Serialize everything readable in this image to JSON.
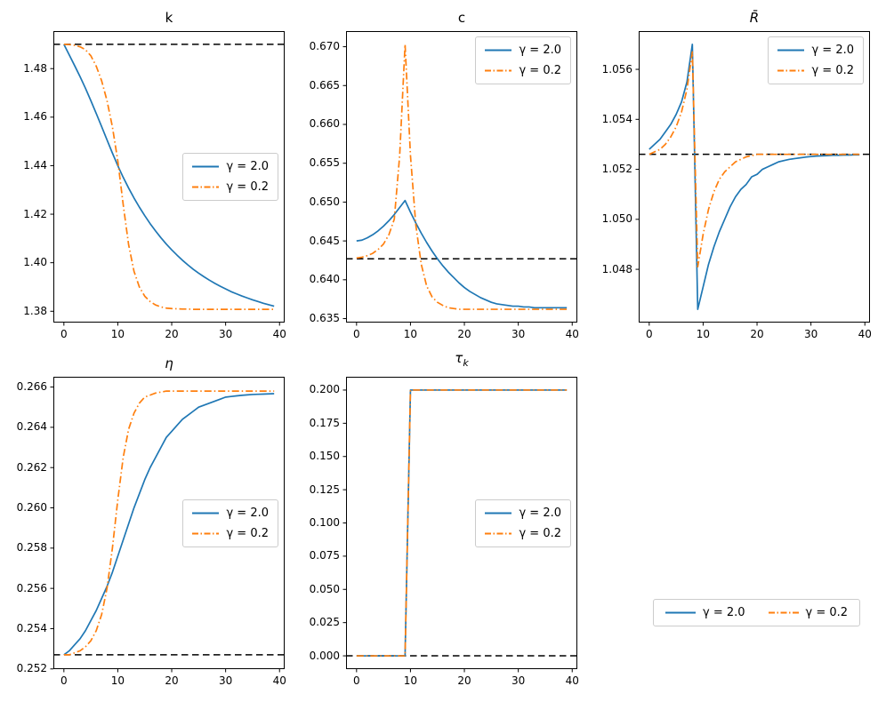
{
  "figure": {
    "background": "#ffffff",
    "series_styles": [
      {
        "name": "gamma-2.0",
        "label": "γ = 2.0",
        "color": "#1f77b4",
        "dash": "solid"
      },
      {
        "name": "gamma-0.2",
        "label": "γ = 0.2",
        "color": "#ff7f0e",
        "dash": "dashdot"
      }
    ],
    "steady_state_style": {
      "color": "#000000",
      "dash": "dashed"
    }
  },
  "figure_legend": {
    "labels": [
      "γ = 2.0",
      "γ = 0.2"
    ]
  },
  "chart_data": [
    {
      "id": "k",
      "type": "line",
      "title": "k",
      "title_sub": "",
      "xlabel": "",
      "ylabel": "",
      "grid": false,
      "xlim": [
        -1.95,
        40.95
      ],
      "ylim": [
        1.37534,
        1.49546
      ],
      "xticks": {
        "values": [
          0,
          10,
          20,
          30,
          40
        ],
        "labels": [
          "0",
          "10",
          "20",
          "30",
          "40"
        ]
      },
      "yticks": {
        "values": [
          1.38,
          1.4,
          1.42,
          1.44,
          1.46,
          1.48
        ],
        "labels": [
          "1.38",
          "1.40",
          "1.42",
          "1.44",
          "1.46",
          "1.48"
        ]
      },
      "steady_state": 1.49,
      "legend_loc": "center-right",
      "x": [
        0,
        1,
        2,
        3,
        4,
        5,
        6,
        7,
        8,
        9,
        10,
        11,
        12,
        13,
        14,
        15,
        16,
        17,
        18,
        19,
        20,
        21,
        22,
        23,
        24,
        25,
        26,
        27,
        28,
        29,
        30,
        31,
        32,
        33,
        34,
        35,
        36,
        37,
        38,
        39
      ],
      "series": [
        {
          "name": "γ = 2.0",
          "values": [
            1.49,
            1.4856,
            1.4812,
            1.4767,
            1.4719,
            1.4668,
            1.4615,
            1.4561,
            1.4506,
            1.4452,
            1.44,
            1.4352,
            1.4308,
            1.4267,
            1.4229,
            1.4194,
            1.4161,
            1.4131,
            1.4103,
            1.4077,
            1.4053,
            1.4031,
            1.401,
            1.3991,
            1.3973,
            1.3957,
            1.3942,
            1.3928,
            1.3915,
            1.3903,
            1.3892,
            1.3881,
            1.3872,
            1.3863,
            1.3855,
            1.3847,
            1.384,
            1.3833,
            1.3827,
            1.3821
          ]
        },
        {
          "name": "γ = 0.2",
          "values": [
            1.49,
            1.4899,
            1.4896,
            1.489,
            1.4878,
            1.4853,
            1.481,
            1.475,
            1.4668,
            1.456,
            1.442,
            1.424,
            1.4075,
            1.3965,
            1.39,
            1.3862,
            1.384,
            1.3826,
            1.3818,
            1.3813,
            1.3811,
            1.381,
            1.3809,
            1.3809,
            1.3808,
            1.3808,
            1.3808,
            1.3808,
            1.3808,
            1.3808,
            1.3808,
            1.3808,
            1.3808,
            1.3808,
            1.3808,
            1.3808,
            1.3808,
            1.3808,
            1.3808,
            1.3808
          ]
        }
      ]
    },
    {
      "id": "c",
      "type": "line",
      "title": "c",
      "title_sub": "",
      "xlabel": "",
      "ylabel": "",
      "grid": false,
      "xlim": [
        -1.95,
        40.95
      ],
      "ylim": [
        0.63449,
        0.67201
      ],
      "xticks": {
        "values": [
          0,
          10,
          20,
          30,
          40
        ],
        "labels": [
          "0",
          "10",
          "20",
          "30",
          "40"
        ]
      },
      "yticks": {
        "values": [
          0.635,
          0.64,
          0.645,
          0.65,
          0.655,
          0.66,
          0.665,
          0.67
        ],
        "labels": [
          "0.635",
          "0.640",
          "0.645",
          "0.650",
          "0.655",
          "0.660",
          "0.665",
          "0.670"
        ]
      },
      "steady_state": 0.6427,
      "legend_loc": "upper-right",
      "x": [
        0,
        1,
        2,
        3,
        4,
        5,
        6,
        7,
        8,
        9,
        10,
        11,
        12,
        13,
        14,
        15,
        16,
        17,
        18,
        19,
        20,
        21,
        22,
        23,
        24,
        25,
        26,
        27,
        28,
        29,
        30,
        31,
        32,
        33,
        34,
        35,
        36,
        37,
        38,
        39
      ],
      "series": [
        {
          "name": "γ = 2.0",
          "values": [
            0.645,
            0.6451,
            0.6454,
            0.6458,
            0.6463,
            0.6469,
            0.6476,
            0.6484,
            0.6493,
            0.6502,
            0.6487,
            0.6473,
            0.646,
            0.6448,
            0.6437,
            0.6427,
            0.6418,
            0.641,
            0.6403,
            0.6396,
            0.639,
            0.6385,
            0.6381,
            0.6377,
            0.6374,
            0.6371,
            0.6369,
            0.6368,
            0.6367,
            0.6366,
            0.6366,
            0.6365,
            0.6365,
            0.6364,
            0.6364,
            0.6364,
            0.6364,
            0.6364,
            0.6364,
            0.6364
          ]
        },
        {
          "name": "γ = 0.2",
          "values": [
            0.6428,
            0.6429,
            0.6431,
            0.6434,
            0.6439,
            0.6446,
            0.6458,
            0.6478,
            0.656,
            0.6703,
            0.656,
            0.647,
            0.642,
            0.6392,
            0.6378,
            0.6371,
            0.6367,
            0.6364,
            0.6363,
            0.6362,
            0.6362,
            0.6362,
            0.6362,
            0.6362,
            0.6362,
            0.6362,
            0.6362,
            0.6362,
            0.6362,
            0.6362,
            0.6362,
            0.6362,
            0.6362,
            0.6362,
            0.6362,
            0.6362,
            0.6362,
            0.6362,
            0.6362,
            0.6362
          ]
        }
      ]
    },
    {
      "id": "Rbar",
      "type": "line",
      "title": "R̄",
      "title_sub": "",
      "xlabel": "",
      "ylabel": "",
      "grid": false,
      "xlim": [
        -1.95,
        40.95
      ],
      "ylim": [
        1.04587,
        1.05753
      ],
      "xticks": {
        "values": [
          0,
          10,
          20,
          30,
          40
        ],
        "labels": [
          "0",
          "10",
          "20",
          "30",
          "40"
        ]
      },
      "yticks": {
        "values": [
          1.048,
          1.05,
          1.052,
          1.054,
          1.056
        ],
        "labels": [
          "1.048",
          "1.050",
          "1.052",
          "1.054",
          "1.056"
        ]
      },
      "steady_state": 1.0526,
      "legend_loc": "upper-right",
      "x": [
        0,
        1,
        2,
        3,
        4,
        5,
        6,
        7,
        8,
        9,
        10,
        11,
        12,
        13,
        14,
        15,
        16,
        17,
        18,
        19,
        20,
        21,
        22,
        23,
        24,
        25,
        26,
        27,
        28,
        29,
        30,
        31,
        32,
        33,
        34,
        35,
        36,
        37,
        38,
        39
      ],
      "series": [
        {
          "name": "γ = 2.0",
          "values": [
            1.0528,
            1.053,
            1.0532,
            1.0535,
            1.0538,
            1.0542,
            1.0547,
            1.0555,
            1.057,
            1.0464,
            1.0473,
            1.0482,
            1.0489,
            1.0495,
            1.05,
            1.0505,
            1.0509,
            1.0512,
            1.0514,
            1.0517,
            1.0518,
            1.052,
            1.0521,
            1.0522,
            1.0523,
            1.05235,
            1.0524,
            1.05243,
            1.05246,
            1.05249,
            1.05251,
            1.05253,
            1.05254,
            1.05255,
            1.05256,
            1.05256,
            1.05257,
            1.05257,
            1.05258,
            1.05258
          ]
        },
        {
          "name": "γ = 0.2",
          "values": [
            1.0526,
            1.0527,
            1.0528,
            1.053,
            1.0533,
            1.0537,
            1.0543,
            1.0552,
            1.0567,
            1.0481,
            1.0494,
            1.0504,
            1.0511,
            1.0516,
            1.0519,
            1.0521,
            1.0523,
            1.0524,
            1.0525,
            1.05255,
            1.0526,
            1.0526,
            1.0526,
            1.0526,
            1.0526,
            1.0526,
            1.0526,
            1.0526,
            1.0526,
            1.0526,
            1.0526,
            1.0526,
            1.0526,
            1.0526,
            1.0526,
            1.0526,
            1.0526,
            1.0526,
            1.0526,
            1.0526
          ]
        }
      ]
    },
    {
      "id": "eta",
      "type": "line",
      "title": "η",
      "title_sub": "",
      "xlabel": "",
      "ylabel": "",
      "grid": false,
      "xlim": [
        -1.95,
        40.95
      ],
      "ylim": [
        0.25199,
        0.26651
      ],
      "xticks": {
        "values": [
          0,
          10,
          20,
          30,
          40
        ],
        "labels": [
          "0",
          "10",
          "20",
          "30",
          "40"
        ]
      },
      "yticks": {
        "values": [
          0.252,
          0.254,
          0.256,
          0.258,
          0.26,
          0.262,
          0.264,
          0.266
        ],
        "labels": [
          "0.252",
          "0.254",
          "0.256",
          "0.258",
          "0.260",
          "0.262",
          "0.264",
          "0.266"
        ]
      },
      "steady_state": 0.2527,
      "legend_loc": "center-right",
      "x": [
        0,
        1,
        2,
        3,
        4,
        5,
        6,
        7,
        8,
        9,
        10,
        11,
        12,
        13,
        14,
        15,
        16,
        17,
        18,
        19,
        20,
        21,
        22,
        23,
        24,
        25,
        26,
        27,
        28,
        29,
        30,
        31,
        32,
        33,
        34,
        35,
        36,
        37,
        38,
        39
      ],
      "series": [
        {
          "name": "γ = 2.0",
          "values": [
            0.2527,
            0.2529,
            0.2532,
            0.2535,
            0.2539,
            0.2544,
            0.2549,
            0.2555,
            0.2561,
            0.2568,
            0.2576,
            0.2584,
            0.2592,
            0.26,
            0.2607,
            0.2614,
            0.262,
            0.2625,
            0.263,
            0.2635,
            0.2638,
            0.2641,
            0.2644,
            0.2646,
            0.2648,
            0.265,
            0.2651,
            0.2652,
            0.2653,
            0.2654,
            0.2655,
            0.26553,
            0.26556,
            0.26559,
            0.26561,
            0.26563,
            0.26564,
            0.26565,
            0.26566,
            0.26567
          ]
        },
        {
          "name": "γ = 0.2",
          "values": [
            0.2527,
            0.2527,
            0.2528,
            0.2529,
            0.2531,
            0.2534,
            0.2539,
            0.2547,
            0.256,
            0.258,
            0.2604,
            0.2625,
            0.2639,
            0.2647,
            0.2652,
            0.2655,
            0.2656,
            0.2657,
            0.26575,
            0.2658,
            0.2658,
            0.2658,
            0.2658,
            0.2658,
            0.2658,
            0.2658,
            0.2658,
            0.2658,
            0.2658,
            0.2658,
            0.2658,
            0.2658,
            0.2658,
            0.2658,
            0.2658,
            0.2658,
            0.2658,
            0.2658,
            0.2658,
            0.2658
          ]
        }
      ]
    },
    {
      "id": "tau_k",
      "type": "line",
      "title": "τ",
      "title_sub": "k",
      "xlabel": "",
      "ylabel": "",
      "grid": false,
      "xlim": [
        -1.95,
        40.95
      ],
      "ylim": [
        -0.01,
        0.21
      ],
      "xticks": {
        "values": [
          0,
          10,
          20,
          30,
          40
        ],
        "labels": [
          "0",
          "10",
          "20",
          "30",
          "40"
        ]
      },
      "yticks": {
        "values": [
          0.0,
          0.025,
          0.05,
          0.075,
          0.1,
          0.125,
          0.15,
          0.175,
          0.2
        ],
        "labels": [
          "0.000",
          "0.025",
          "0.050",
          "0.075",
          "0.100",
          "0.125",
          "0.150",
          "0.175",
          "0.200"
        ]
      },
      "steady_state": 0.0,
      "legend_loc": "center-right",
      "x": [
        0,
        1,
        2,
        3,
        4,
        5,
        6,
        7,
        8,
        9,
        10,
        11,
        12,
        13,
        14,
        15,
        16,
        17,
        18,
        19,
        20,
        21,
        22,
        23,
        24,
        25,
        26,
        27,
        28,
        29,
        30,
        31,
        32,
        33,
        34,
        35,
        36,
        37,
        38,
        39
      ],
      "series": [
        {
          "name": "γ = 2.0",
          "values": [
            0,
            0,
            0,
            0,
            0,
            0,
            0,
            0,
            0,
            0,
            0.2,
            0.2,
            0.2,
            0.2,
            0.2,
            0.2,
            0.2,
            0.2,
            0.2,
            0.2,
            0.2,
            0.2,
            0.2,
            0.2,
            0.2,
            0.2,
            0.2,
            0.2,
            0.2,
            0.2,
            0.2,
            0.2,
            0.2,
            0.2,
            0.2,
            0.2,
            0.2,
            0.2,
            0.2,
            0.2
          ]
        },
        {
          "name": "γ = 0.2",
          "values": [
            0,
            0,
            0,
            0,
            0,
            0,
            0,
            0,
            0,
            0,
            0.2,
            0.2,
            0.2,
            0.2,
            0.2,
            0.2,
            0.2,
            0.2,
            0.2,
            0.2,
            0.2,
            0.2,
            0.2,
            0.2,
            0.2,
            0.2,
            0.2,
            0.2,
            0.2,
            0.2,
            0.2,
            0.2,
            0.2,
            0.2,
            0.2,
            0.2,
            0.2,
            0.2,
            0.2,
            0.2
          ]
        }
      ]
    }
  ]
}
